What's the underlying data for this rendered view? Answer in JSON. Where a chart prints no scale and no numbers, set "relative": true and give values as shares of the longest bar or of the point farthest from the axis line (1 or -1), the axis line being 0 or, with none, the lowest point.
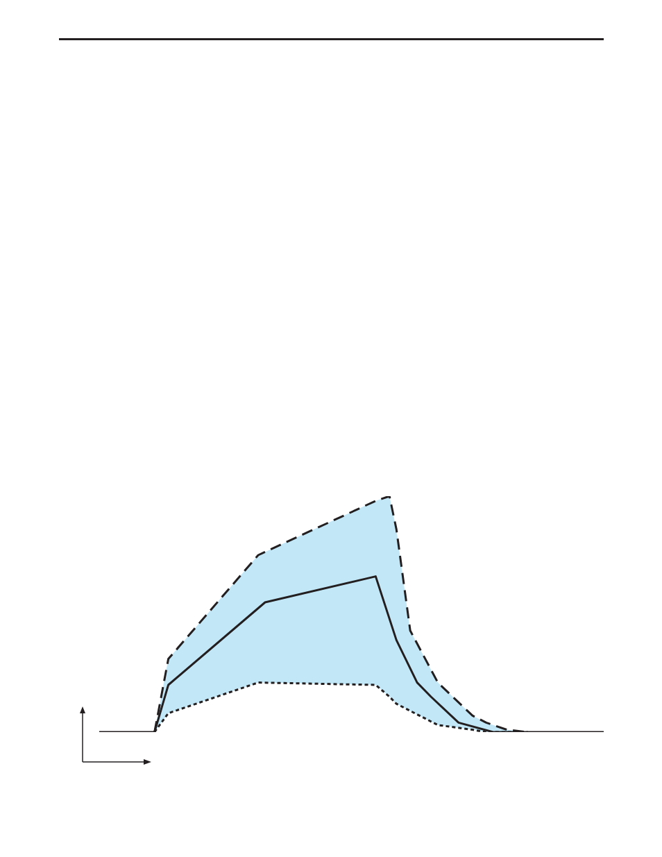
{
  "chart_data": {
    "type": "line",
    "relative": true,
    "grid": false,
    "legend": false,
    "marker": "none",
    "categories": [
      null,
      null,
      null,
      null,
      null,
      null,
      null,
      null,
      null,
      null,
      null,
      null,
      null,
      null,
      null,
      null,
      null,
      null,
      null,
      null,
      null,
      null,
      null,
      null,
      null,
      null,
      null,
      null,
      null,
      null,
      null,
      null,
      null,
      null,
      null,
      null,
      null,
      null,
      null,
      null,
      null,
      null,
      null,
      null,
      null,
      null,
      null,
      null,
      null,
      null,
      null,
      null,
      null,
      null,
      null,
      null,
      null,
      null,
      null,
      null,
      null,
      null,
      null,
      null,
      null,
      null,
      null,
      null,
      null,
      null,
      null,
      null,
      null,
      null
    ],
    "series": [
      {
        "color": "#231f20",
        "line_style": "dashed",
        "values": [
          null,
          null,
          null,
          null,
          null,
          null,
          null,
          null,
          0,
          null,
          0.31,
          null,
          null,
          null,
          null,
          null,
          null,
          null,
          null,
          null,
          null,
          null,
          null,
          0.75,
          null,
          null,
          null,
          null,
          null,
          null,
          null,
          null,
          null,
          null,
          null,
          null,
          null,
          null,
          null,
          null,
          0.98,
          null,
          1,
          0.86,
          null,
          0.43,
          null,
          null,
          null,
          0.21,
          null,
          null,
          null,
          null,
          0.07,
          null,
          0.04,
          null,
          null,
          0.01,
          null,
          null,
          0,
          null,
          null,
          null,
          null,
          null,
          null,
          null,
          null,
          null,
          null,
          null
        ]
      },
      {
        "color": "#231f20",
        "line_style": "dotted",
        "values": [
          null,
          null,
          null,
          null,
          null,
          null,
          null,
          null,
          0,
          null,
          0.08,
          null,
          null,
          null,
          null,
          null,
          null,
          null,
          null,
          null,
          null,
          null,
          null,
          0.21,
          null,
          null,
          null,
          null,
          null,
          null,
          null,
          null,
          null,
          null,
          null,
          null,
          null,
          null,
          null,
          null,
          0.2,
          null,
          0.15,
          0.12,
          null,
          0.09,
          null,
          null,
          null,
          0.03,
          null,
          null,
          null,
          null,
          0.01,
          null,
          0,
          null,
          null,
          0,
          null,
          null,
          0,
          null,
          null,
          null,
          null,
          null,
          null,
          null,
          null,
          null,
          null,
          null
        ]
      },
      {
        "color": "#231f20",
        "line_style": "solid",
        "values": [
          0,
          null,
          null,
          null,
          null,
          null,
          null,
          null,
          0,
          null,
          0.2,
          null,
          null,
          null,
          null,
          null,
          null,
          null,
          null,
          null,
          null,
          null,
          null,
          null,
          0.55,
          null,
          null,
          null,
          null,
          null,
          null,
          null,
          null,
          null,
          null,
          null,
          null,
          null,
          null,
          null,
          0.66,
          null,
          null,
          0.39,
          null,
          null,
          0.21,
          null,
          0.15,
          null,
          null,
          null,
          0.04,
          null,
          null,
          null,
          null,
          0,
          null,
          null,
          null,
          null,
          null,
          null,
          null,
          null,
          null,
          null,
          null,
          null,
          null,
          null,
          null,
          0
        ],
        "upper": [
          null,
          null,
          null,
          null,
          null,
          null,
          null,
          null,
          0,
          null,
          0.31,
          null,
          null,
          null,
          null,
          null,
          null,
          null,
          null,
          null,
          null,
          null,
          null,
          0.75,
          null,
          null,
          null,
          null,
          null,
          null,
          null,
          null,
          null,
          null,
          null,
          null,
          null,
          null,
          null,
          null,
          0.98,
          null,
          1,
          0.86,
          null,
          0.43,
          null,
          null,
          null,
          0.21,
          null,
          null,
          null,
          null,
          0.07,
          null,
          0.04,
          null,
          null,
          0.01,
          null,
          null,
          0,
          null,
          null,
          null,
          null,
          null,
          null,
          null,
          null,
          null,
          null,
          null
        ],
        "lower": [
          null,
          null,
          null,
          null,
          null,
          null,
          null,
          null,
          0,
          null,
          0.08,
          null,
          null,
          null,
          null,
          null,
          null,
          null,
          null,
          null,
          null,
          null,
          null,
          0.21,
          null,
          null,
          null,
          null,
          null,
          null,
          null,
          null,
          null,
          null,
          null,
          null,
          null,
          null,
          null,
          null,
          0.2,
          null,
          0.15,
          0.12,
          null,
          0.09,
          null,
          null,
          null,
          0.03,
          null,
          null,
          null,
          null,
          0.01,
          null,
          0,
          null,
          null,
          0,
          null,
          null,
          0,
          null,
          null,
          null,
          null,
          null,
          null,
          null,
          null,
          null,
          null,
          null
        ]
      }
    ]
  }
}
